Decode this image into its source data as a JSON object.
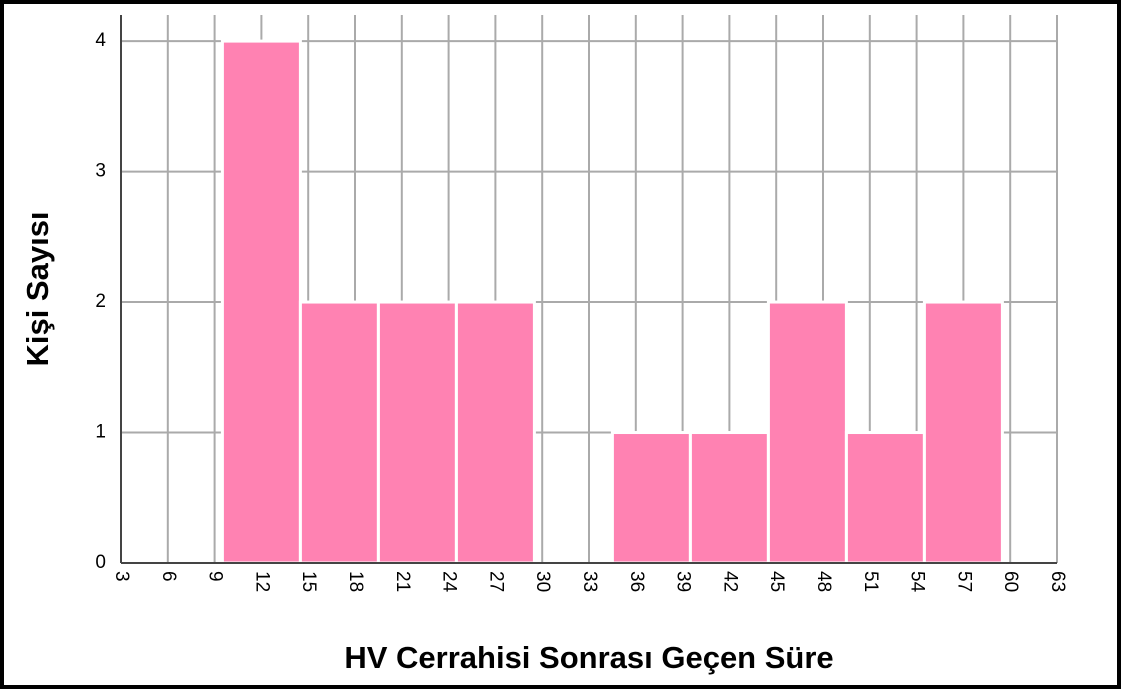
{
  "chart_data": {
    "type": "histogram",
    "xlabel": "HV Cerrahisi Sonrası Geçen Süre",
    "ylabel": "Kişi Sayısı",
    "bins": [
      9.5,
      14.5,
      19.5,
      24.5,
      29.5,
      34.5,
      39.5,
      44.5,
      49.5,
      54.5,
      59.5
    ],
    "values": [
      4,
      2,
      2,
      2,
      0,
      1,
      1,
      2,
      1,
      2
    ],
    "color": "#ff82b2",
    "xlim": [
      3,
      63
    ],
    "xticks": [
      3,
      6,
      9,
      12,
      15,
      18,
      21,
      24,
      27,
      30,
      33,
      36,
      39,
      42,
      45,
      48,
      51,
      54,
      57,
      60,
      63
    ],
    "ylim": [
      0,
      4.2
    ],
    "yticks": [
      0,
      1,
      2,
      3,
      4
    ],
    "grid": true
  }
}
